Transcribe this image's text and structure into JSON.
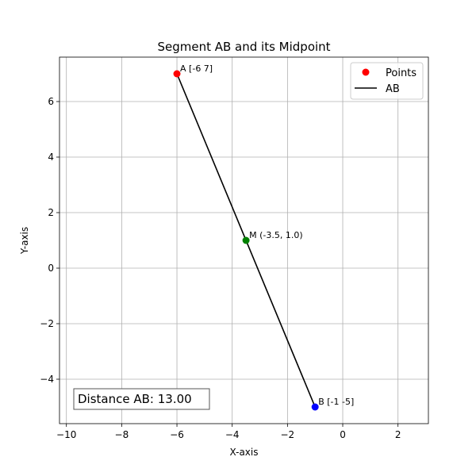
{
  "chart_data": {
    "type": "scatter",
    "title": "Segment AB and its Midpoint",
    "xlabel": "X-axis",
    "ylabel": "Y-axis",
    "xlim": [
      -10.25,
      3.1
    ],
    "ylim": [
      -5.6,
      7.6
    ],
    "xticks": [
      -10,
      -8,
      -6,
      -4,
      -2,
      0,
      2
    ],
    "yticks": [
      -4,
      -2,
      0,
      2,
      4,
      6
    ],
    "xtick_labels": [
      "−10",
      "−8",
      "−6",
      "−4",
      "−2",
      "0",
      "2"
    ],
    "ytick_labels": [
      "−4",
      "−2",
      "0",
      "2",
      "4",
      "6"
    ],
    "grid": true,
    "points": [
      {
        "id": "A",
        "x": -6,
        "y": 7,
        "color": "#ff0000",
        "label": "A [-6  7]"
      },
      {
        "id": "B",
        "x": -1,
        "y": -5,
        "color": "#0000ff",
        "label": "B [-1 -5]"
      },
      {
        "id": "M",
        "x": -3.5,
        "y": 1.0,
        "color": "#008000",
        "label": "M (-3.5, 1.0)"
      }
    ],
    "segment": {
      "from": [
        -6,
        7
      ],
      "to": [
        -1,
        -5
      ],
      "color": "#000000"
    },
    "legend": {
      "position": "top-right",
      "entries": [
        {
          "label": "Points",
          "kind": "marker",
          "color": "#ff0000"
        },
        {
          "label": "AB",
          "kind": "line",
          "color": "#000000"
        }
      ]
    },
    "text_box": {
      "text": "Distance AB: 13.00",
      "position": "bottom-left"
    }
  }
}
